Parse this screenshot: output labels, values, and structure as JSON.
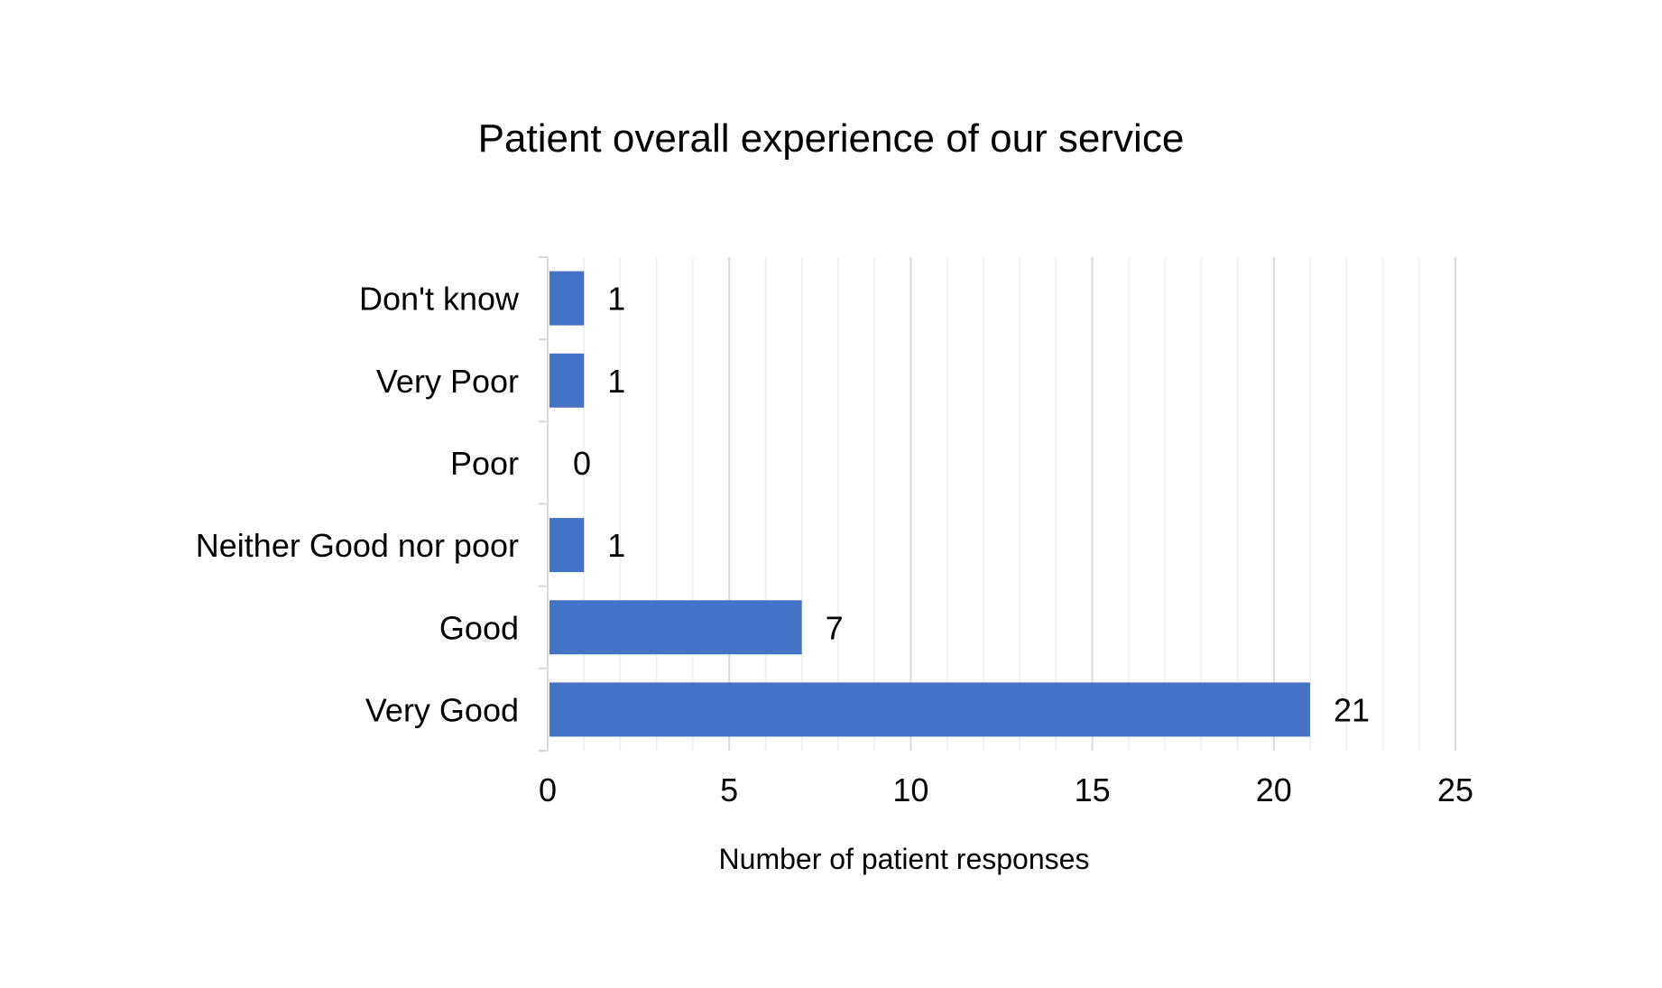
{
  "chart_data": {
    "type": "bar",
    "orientation": "horizontal",
    "title": "Patient overall experience of our service",
    "xlabel": "Number of patient responses",
    "ylabel": "",
    "categories": [
      "Don't know",
      "Very Poor",
      "Poor",
      "Neither Good nor poor",
      "Good",
      "Very Good"
    ],
    "values": [
      1,
      1,
      0,
      1,
      7,
      21
    ],
    "xlim": [
      0,
      25
    ],
    "x_ticks": [
      "0",
      "5",
      "10",
      "15",
      "20",
      "25"
    ],
    "minor_grid_step": 1,
    "grid": true,
    "data_labels": true,
    "legend": "none",
    "bar_color": "#4472C4",
    "major_grid_color": "#D9D9D9",
    "minor_grid_color": "#EEEEEE"
  }
}
